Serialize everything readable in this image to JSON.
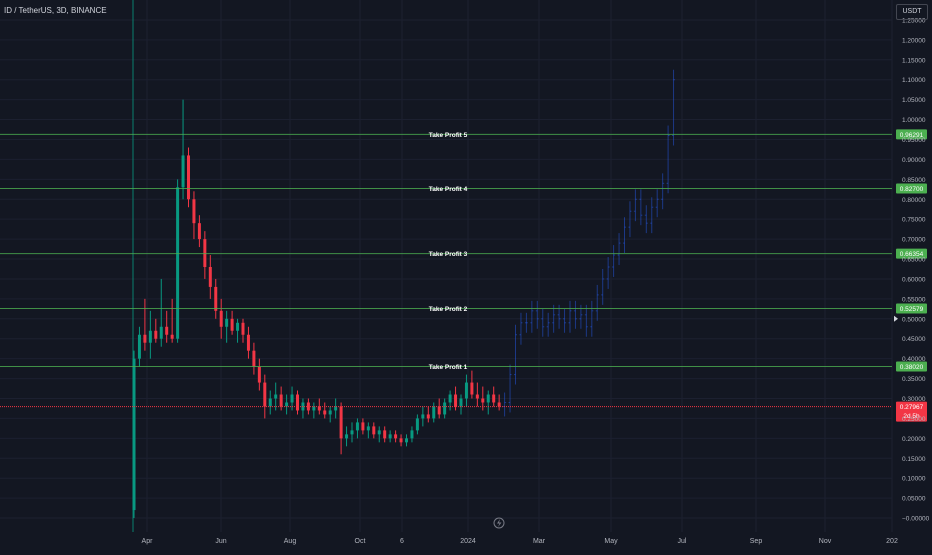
{
  "header": {
    "title": "ID / TetherUS, 3D, BINANCE",
    "currency": "USDT"
  },
  "colors": {
    "background": "#131722",
    "up": "#089981",
    "down": "#f23645",
    "projection": "#1e3f66",
    "tp_line": "#4caf50",
    "current_price": "#f23645",
    "axis_text": "#b2b5be"
  },
  "chart_data": {
    "type": "candlestick",
    "title": "ID / TetherUS, 3D, BINANCE",
    "ylim": [
      -0.03,
      1.29
    ],
    "y_ticks": [
      "1.25000",
      "1.20000",
      "1.15000",
      "1.10000",
      "1.05000",
      "1.00000",
      "0.95000",
      "0.90000",
      "0.85000",
      "0.80000",
      "0.75000",
      "0.70000",
      "0.65000",
      "0.60000",
      "0.55000",
      "0.50000",
      "0.45000",
      "0.40000",
      "0.35000",
      "0.30000",
      "0.25000",
      "0.20000",
      "0.15000",
      "0.10000",
      "0.05000",
      "−0.00000"
    ],
    "x_ticks": [
      "Apr",
      "Jun",
      "Aug",
      "Oct",
      "6",
      "2024",
      "Mar",
      "May",
      "Jul",
      "Sep",
      "Nov",
      "202"
    ],
    "take_profits": [
      {
        "label": "Take Profit 5",
        "value": 0.96291,
        "tag": "0.96291"
      },
      {
        "label": "Take Profit 4",
        "value": 0.827,
        "tag": "0.82700"
      },
      {
        "label": "Take Profit 3",
        "value": 0.66354,
        "tag": "0.66354"
      },
      {
        "label": "Take Profit 2",
        "value": 0.52579,
        "tag": "0.52579"
      },
      {
        "label": "Take Profit 1",
        "value": 0.3802,
        "tag": "0.38020"
      }
    ],
    "current_price": {
      "value": 0.2796,
      "tag": "0.27967",
      "countdown": "2d 5h"
    },
    "candles": [
      [
        0.02,
        0.42,
        0.0,
        0.4
      ],
      [
        0.4,
        0.48,
        0.38,
        0.46
      ],
      [
        0.46,
        0.55,
        0.42,
        0.44
      ],
      [
        0.44,
        0.52,
        0.4,
        0.47
      ],
      [
        0.47,
        0.5,
        0.44,
        0.45
      ],
      [
        0.45,
        0.6,
        0.43,
        0.48
      ],
      [
        0.48,
        0.52,
        0.44,
        0.46
      ],
      [
        0.46,
        0.55,
        0.44,
        0.45
      ],
      [
        0.45,
        0.85,
        0.44,
        0.83
      ],
      [
        0.83,
        1.05,
        0.8,
        0.91
      ],
      [
        0.91,
        0.93,
        0.78,
        0.8
      ],
      [
        0.8,
        0.82,
        0.7,
        0.74
      ],
      [
        0.74,
        0.76,
        0.68,
        0.7
      ],
      [
        0.7,
        0.72,
        0.6,
        0.63
      ],
      [
        0.63,
        0.66,
        0.55,
        0.58
      ],
      [
        0.58,
        0.6,
        0.5,
        0.52
      ],
      [
        0.52,
        0.55,
        0.45,
        0.48
      ],
      [
        0.48,
        0.52,
        0.44,
        0.5
      ],
      [
        0.5,
        0.52,
        0.46,
        0.47
      ],
      [
        0.47,
        0.5,
        0.44,
        0.49
      ],
      [
        0.49,
        0.5,
        0.44,
        0.46
      ],
      [
        0.46,
        0.48,
        0.4,
        0.42
      ],
      [
        0.42,
        0.44,
        0.36,
        0.38
      ],
      [
        0.38,
        0.4,
        0.32,
        0.34
      ],
      [
        0.34,
        0.36,
        0.25,
        0.28
      ],
      [
        0.28,
        0.32,
        0.26,
        0.3
      ],
      [
        0.3,
        0.34,
        0.27,
        0.31
      ],
      [
        0.31,
        0.33,
        0.27,
        0.28
      ],
      [
        0.28,
        0.31,
        0.26,
        0.29
      ],
      [
        0.29,
        0.33,
        0.27,
        0.31
      ],
      [
        0.31,
        0.32,
        0.26,
        0.27
      ],
      [
        0.27,
        0.3,
        0.25,
        0.29
      ],
      [
        0.29,
        0.3,
        0.26,
        0.27
      ],
      [
        0.27,
        0.29,
        0.25,
        0.28
      ],
      [
        0.28,
        0.3,
        0.26,
        0.27
      ],
      [
        0.27,
        0.29,
        0.25,
        0.26
      ],
      [
        0.26,
        0.28,
        0.24,
        0.27
      ],
      [
        0.27,
        0.3,
        0.25,
        0.28
      ],
      [
        0.28,
        0.29,
        0.16,
        0.2
      ],
      [
        0.2,
        0.23,
        0.18,
        0.21
      ],
      [
        0.21,
        0.24,
        0.19,
        0.22
      ],
      [
        0.22,
        0.25,
        0.2,
        0.24
      ],
      [
        0.24,
        0.25,
        0.21,
        0.22
      ],
      [
        0.22,
        0.24,
        0.2,
        0.23
      ],
      [
        0.23,
        0.24,
        0.2,
        0.21
      ],
      [
        0.21,
        0.23,
        0.19,
        0.22
      ],
      [
        0.22,
        0.23,
        0.19,
        0.2
      ],
      [
        0.2,
        0.22,
        0.19,
        0.21
      ],
      [
        0.21,
        0.22,
        0.19,
        0.2
      ],
      [
        0.2,
        0.21,
        0.18,
        0.19
      ],
      [
        0.19,
        0.21,
        0.18,
        0.2
      ],
      [
        0.2,
        0.23,
        0.19,
        0.22
      ],
      [
        0.22,
        0.26,
        0.21,
        0.25
      ],
      [
        0.25,
        0.28,
        0.23,
        0.26
      ],
      [
        0.26,
        0.28,
        0.24,
        0.25
      ],
      [
        0.25,
        0.29,
        0.24,
        0.28
      ],
      [
        0.28,
        0.3,
        0.25,
        0.26
      ],
      [
        0.26,
        0.3,
        0.25,
        0.29
      ],
      [
        0.29,
        0.32,
        0.27,
        0.31
      ],
      [
        0.31,
        0.33,
        0.27,
        0.28
      ],
      [
        0.28,
        0.31,
        0.26,
        0.3
      ],
      [
        0.3,
        0.36,
        0.28,
        0.34
      ],
      [
        0.34,
        0.37,
        0.3,
        0.31
      ],
      [
        0.31,
        0.34,
        0.28,
        0.3
      ],
      [
        0.3,
        0.33,
        0.27,
        0.29
      ],
      [
        0.29,
        0.32,
        0.26,
        0.31
      ],
      [
        0.31,
        0.33,
        0.28,
        0.29
      ],
      [
        0.29,
        0.31,
        0.27,
        0.28
      ]
    ],
    "projection": {
      "start_index": 68,
      "closes": [
        0.29,
        0.36,
        0.46,
        0.49,
        0.49,
        0.52,
        0.5,
        0.48,
        0.49,
        0.51,
        0.5,
        0.49,
        0.52,
        0.5,
        0.51,
        0.48,
        0.52,
        0.56,
        0.6,
        0.63,
        0.66,
        0.69,
        0.73,
        0.77,
        0.8,
        0.76,
        0.74,
        0.78,
        0.8,
        0.84,
        0.96,
        1.1
      ]
    }
  }
}
